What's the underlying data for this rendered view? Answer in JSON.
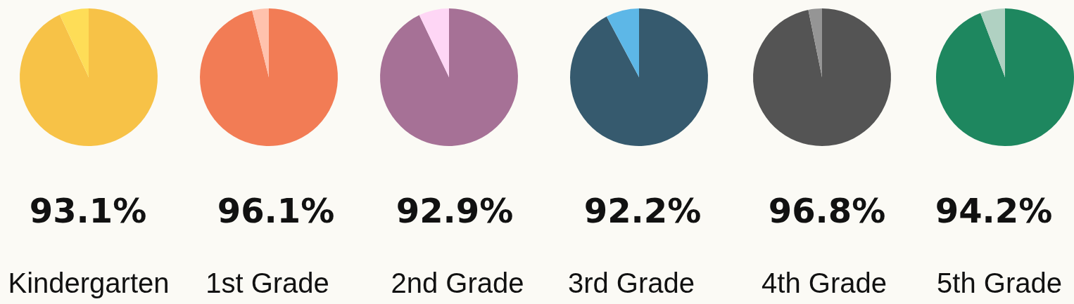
{
  "chart_data": [
    {
      "type": "pie",
      "categories": [
        null,
        null
      ],
      "values": [
        93.1,
        6.9
      ],
      "colors": [
        "#f7c247",
        "#fedd57"
      ],
      "value_labels": [
        "93.1%",
        null
      ],
      "xlabel": "Kindergarten"
    },
    {
      "type": "pie",
      "categories": [
        null,
        null
      ],
      "values": [
        96.1,
        3.9
      ],
      "colors": [
        "#f27c55",
        "#ffc2ad"
      ],
      "value_labels": [
        "96.1%",
        null
      ],
      "xlabel": "1st Grade"
    },
    {
      "type": "pie",
      "categories": [
        null,
        null
      ],
      "values": [
        92.9,
        7.1
      ],
      "colors": [
        "#a67196",
        "#fed6f5"
      ],
      "value_labels": [
        "92.9%",
        null
      ],
      "xlabel": "2nd Grade"
    },
    {
      "type": "pie",
      "categories": [
        null,
        null
      ],
      "values": [
        92.2,
        7.8
      ],
      "colors": [
        "#365a6e",
        "#5db7e7"
      ],
      "value_labels": [
        "92.2%",
        null
      ],
      "xlabel": "3rd Grade"
    },
    {
      "type": "pie",
      "categories": [
        null,
        null
      ],
      "values": [
        96.8,
        3.2
      ],
      "colors": [
        "#545454",
        "#959595"
      ],
      "value_labels": [
        "96.8%",
        null
      ],
      "xlabel": "4th Grade"
    },
    {
      "type": "pie",
      "categories": [
        null,
        null
      ],
      "values": [
        94.2,
        5.8
      ],
      "colors": [
        "#1e875f",
        "#b0d1c2"
      ],
      "value_labels": [
        "94.2%",
        null
      ],
      "xlabel": "5th Grade"
    }
  ]
}
